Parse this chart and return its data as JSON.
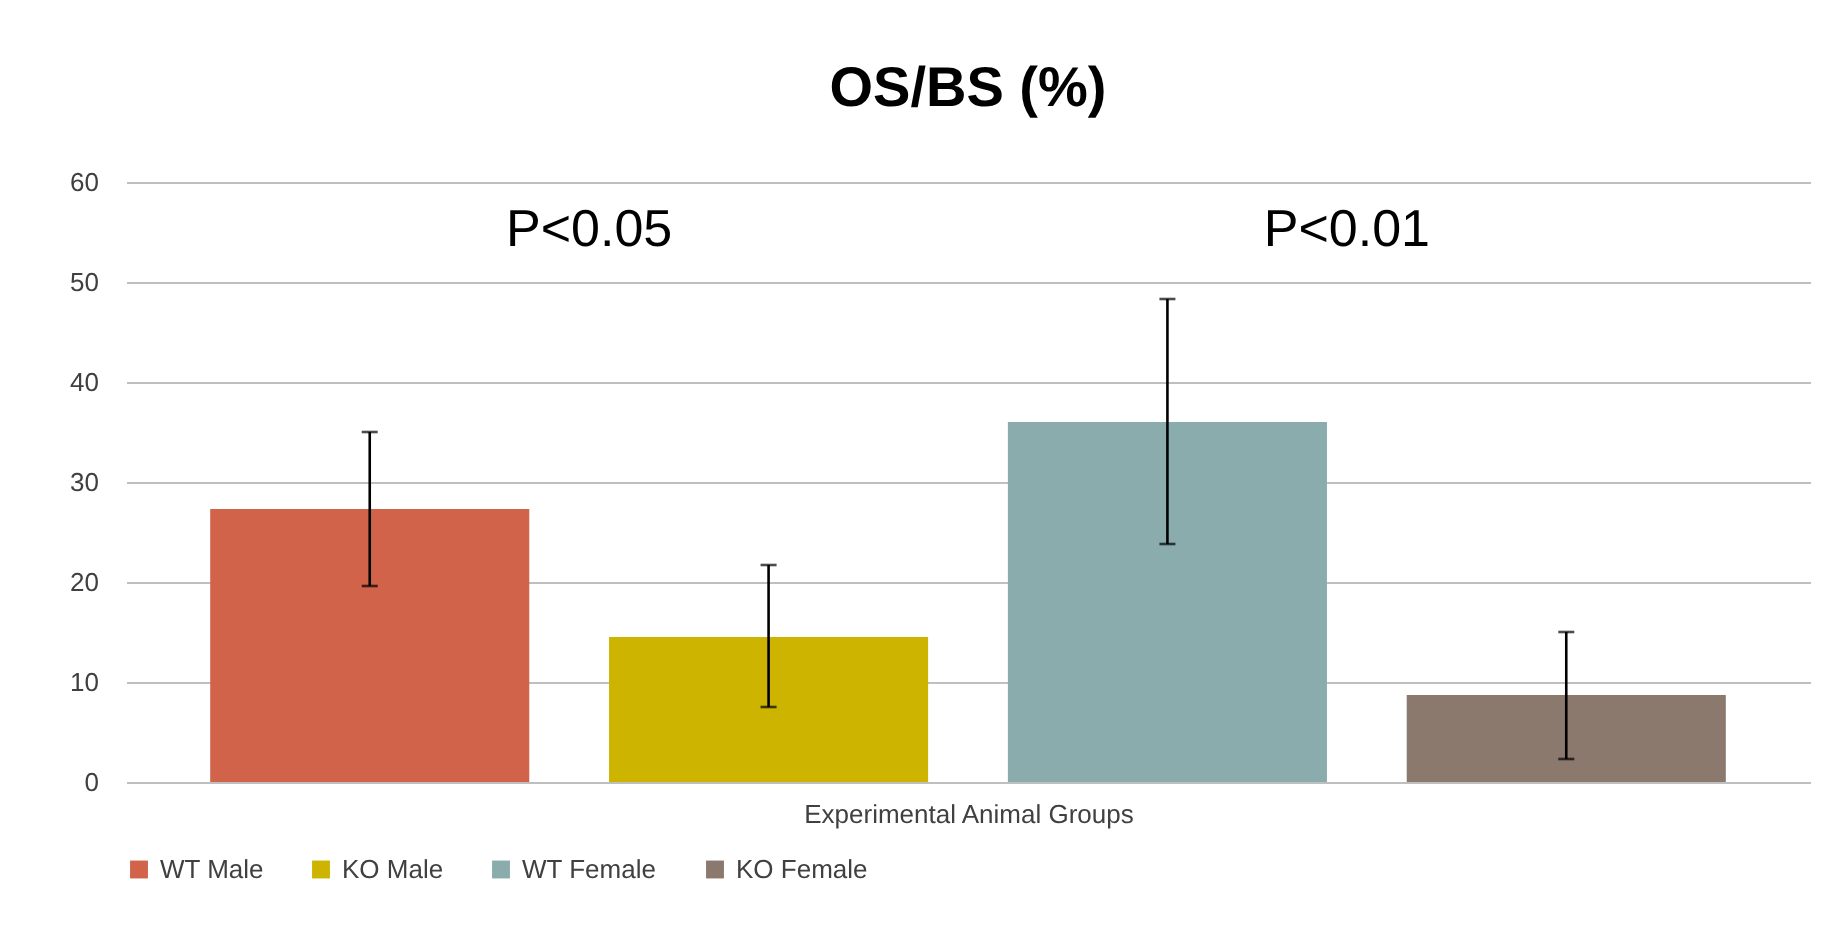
{
  "chart_data": {
    "type": "bar",
    "title": "OS/BS (%)",
    "xlabel": "Experimental Animal Groups",
    "categories": [
      null
    ],
    "series": [
      {
        "name": "WT Male",
        "color": "#d0634a",
        "values": [
          27.3
        ],
        "errors": [
          [
            19.6,
            35.0
          ]
        ]
      },
      {
        "name": "KO Male",
        "color": "#ccb400",
        "values": [
          14.5
        ],
        "errors": [
          [
            7.5,
            21.7
          ]
        ]
      },
      {
        "name": "WT Female",
        "color": "#8aacad",
        "values": [
          36.0
        ],
        "errors": [
          [
            23.8,
            48.3
          ]
        ]
      },
      {
        "name": "KO Female",
        "color": "#8b796d",
        "values": [
          8.7
        ],
        "errors": [
          [
            2.3,
            15.0
          ]
        ]
      }
    ],
    "ylim": [
      0,
      60
    ],
    "yticks": [
      0,
      10,
      20,
      30,
      40,
      50,
      60
    ],
    "grid": "y",
    "legend": "bottom",
    "annotations": [
      "P<0.05",
      "P<0.01"
    ]
  }
}
